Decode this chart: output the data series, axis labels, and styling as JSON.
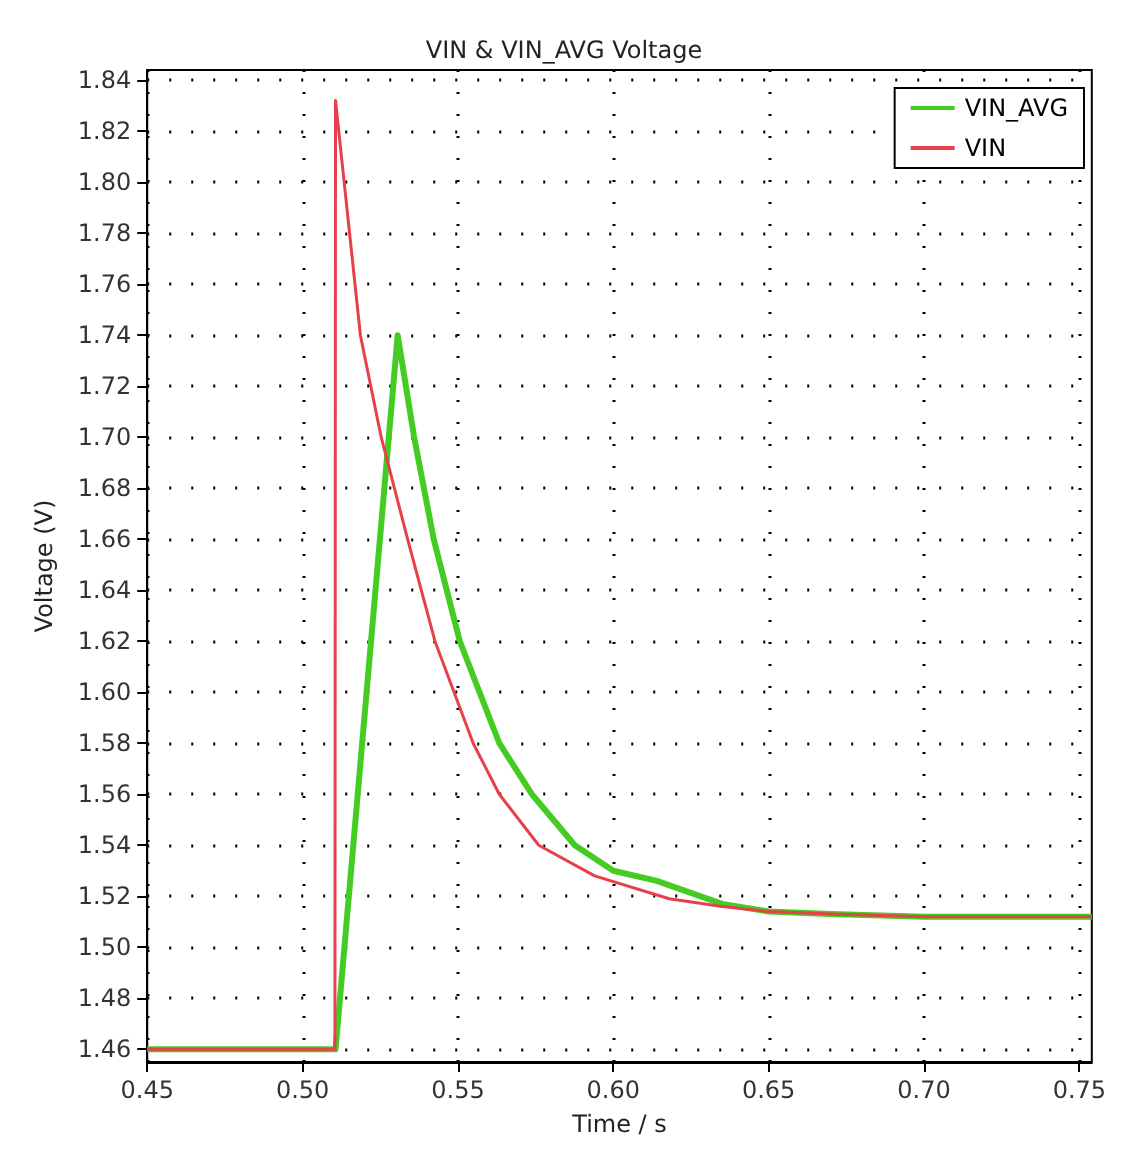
{
  "chart_data": {
    "type": "line",
    "title": "VIN & VIN_AVG Voltage",
    "xlabel": "Time / s",
    "ylabel": "Voltage (V)",
    "xlim": [
      0.45,
      0.754
    ],
    "ylim": [
      1.455,
      1.844
    ],
    "xticks": [
      0.45,
      {
        "value": 0.5,
        "label": "0.50"
      },
      0.55,
      {
        "value": 0.6,
        "label": "0.60"
      },
      0.65,
      {
        "value": 0.7,
        "label": "0.70"
      },
      0.75
    ],
    "yticks": [
      1.46,
      1.48,
      {
        "value": 1.5,
        "label": "1.50"
      },
      1.52,
      1.54,
      1.56,
      1.58,
      {
        "value": 1.6,
        "label": "1.60"
      },
      1.62,
      1.64,
      1.66,
      1.68,
      {
        "value": 1.7,
        "label": "1.70"
      },
      1.72,
      1.74,
      1.76,
      1.78,
      {
        "value": 1.8,
        "label": "1.80"
      },
      1.82,
      1.84
    ],
    "grid": true,
    "legend": "top right",
    "marker": "none",
    "line_style": "solid",
    "series": [
      {
        "name": "VIN_AVG",
        "color": "#44cc22",
        "x": [
          0.45,
          0.5106,
          0.5306,
          0.5359,
          0.5422,
          0.5506,
          0.5633,
          0.5738,
          0.5876,
          0.6,
          0.614,
          0.635,
          0.65,
          0.67,
          0.7,
          0.754
        ],
        "values": [
          1.46,
          1.46,
          1.74,
          1.7,
          1.66,
          1.62,
          1.58,
          1.56,
          1.54,
          1.53,
          1.526,
          1.517,
          1.514,
          1.513,
          1.512,
          1.512
        ]
      },
      {
        "name": "VIN",
        "color": "#e8404a",
        "x": [
          0.45,
          0.5104,
          0.5106,
          0.5186,
          0.5253,
          0.5338,
          0.5426,
          0.5549,
          0.5633,
          0.576,
          0.594,
          0.618,
          0.635,
          0.65,
          0.67,
          0.7,
          0.754
        ],
        "values": [
          1.46,
          1.46,
          1.832,
          1.74,
          1.7,
          1.66,
          1.62,
          1.58,
          1.56,
          1.54,
          1.528,
          1.519,
          1.516,
          1.514,
          1.513,
          1.512,
          1.512
        ]
      }
    ]
  }
}
